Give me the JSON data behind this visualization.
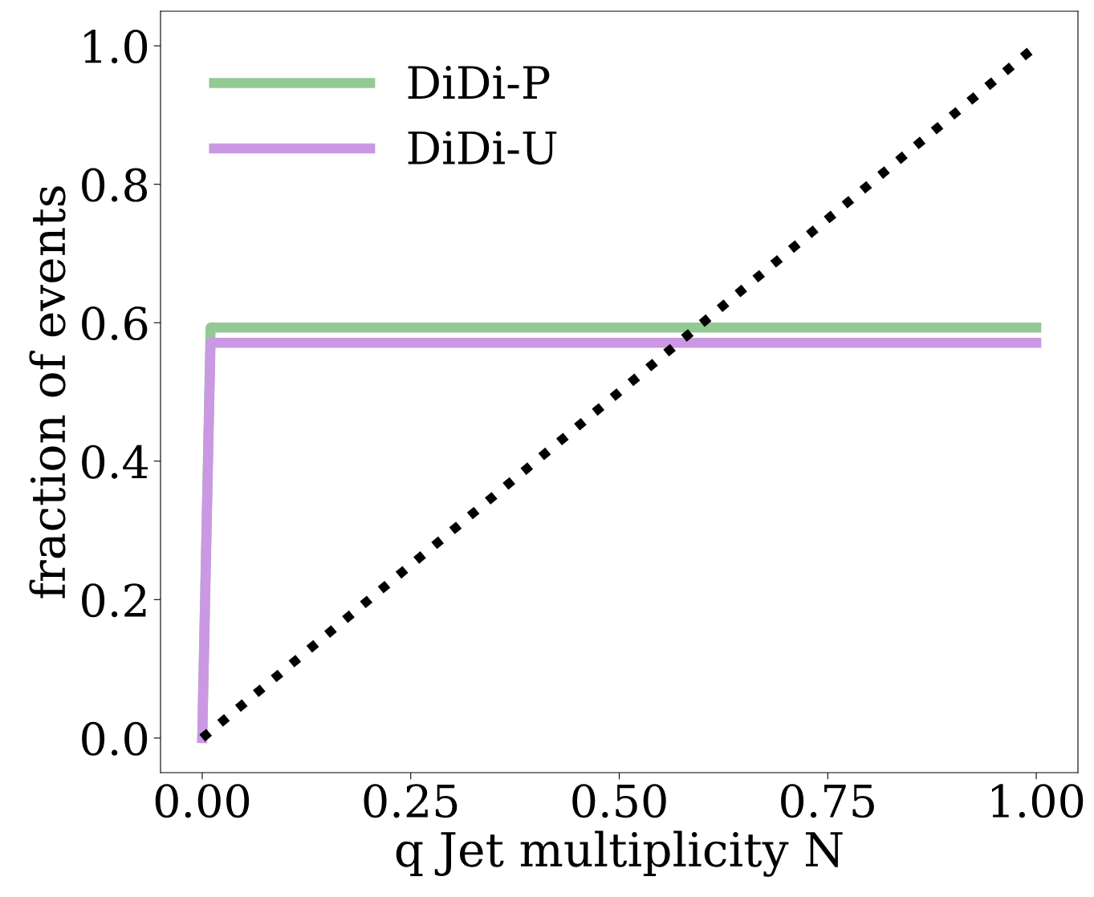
{
  "chart_data": {
    "type": "line",
    "xlabel": "q Jet multiplicity N",
    "ylabel": "fraction of events",
    "series": [
      {
        "name": "DiDi-P",
        "color": "#93c993",
        "x": [
          0,
          0.01,
          1.0
        ],
        "values": [
          0,
          0.593,
          0.593
        ]
      },
      {
        "name": "DiDi-U",
        "color": "#cb98e3",
        "x": [
          0,
          0.01,
          1.0
        ],
        "values": [
          0,
          0.571,
          0.571
        ]
      },
      {
        "color": "#000000",
        "x": [
          0,
          1.0
        ],
        "values": [
          0,
          1.0
        ],
        "line_style": "dotted"
      }
    ],
    "xlim": [
      -0.05,
      1.05
    ],
    "ylim": [
      -0.05,
      1.05
    ],
    "xticks": [
      {
        "value": 0,
        "label": "0.00"
      },
      {
        "value": 0.25,
        "label": "0.25"
      },
      {
        "value": 0.5,
        "label": "0.50"
      },
      {
        "value": 0.75,
        "label": "0.75"
      },
      {
        "value": 1.0,
        "label": "1.00"
      }
    ],
    "yticks": [
      {
        "value": 0,
        "label": "0.0"
      },
      {
        "value": 0.2,
        "label": "0.2"
      },
      {
        "value": 0.4,
        "label": "0.4"
      },
      {
        "value": 0.6,
        "label": "0.6"
      },
      {
        "value": 0.8,
        "label": "0.8"
      },
      {
        "value": 1.0,
        "label": "1.0"
      }
    ],
    "legend": "top left",
    "grid": false
  }
}
